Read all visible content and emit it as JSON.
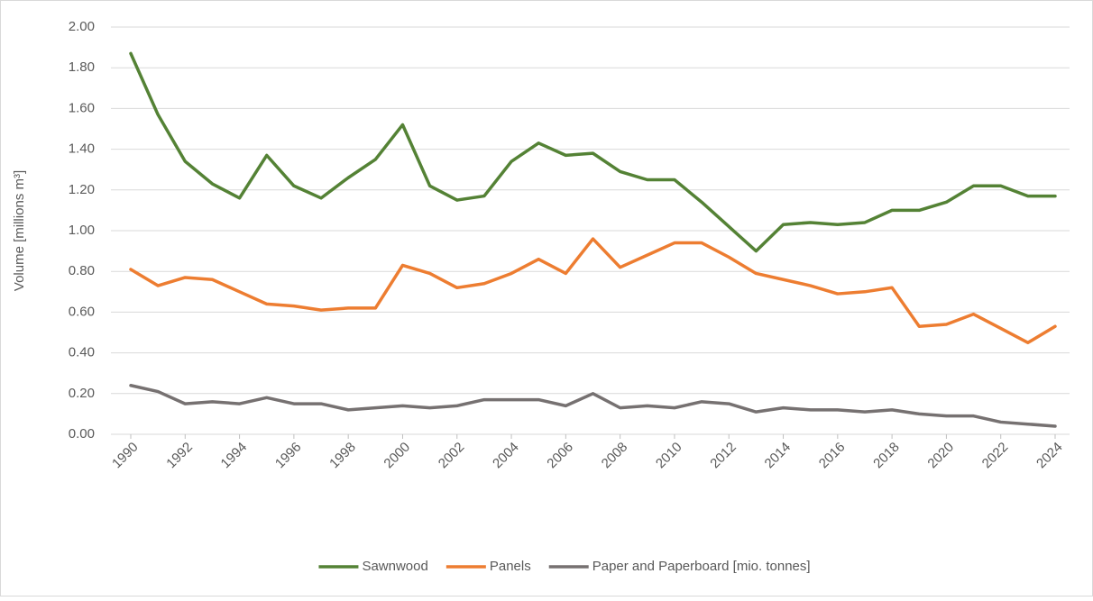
{
  "chart_data": {
    "type": "line",
    "y_label": "Volume [millions m³]",
    "x": [
      1990,
      1991,
      1992,
      1993,
      1994,
      1995,
      1996,
      1997,
      1998,
      1999,
      2000,
      2001,
      2002,
      2003,
      2004,
      2005,
      2006,
      2007,
      2008,
      2009,
      2010,
      2011,
      2012,
      2013,
      2014,
      2015,
      2016,
      2017,
      2018,
      2019,
      2020,
      2021,
      2022,
      2023,
      2024
    ],
    "xlim": [
      1990,
      2024
    ],
    "xticks": [
      1990,
      1992,
      1994,
      1996,
      1998,
      2000,
      2002,
      2004,
      2006,
      2008,
      2010,
      2012,
      2014,
      2016,
      2018,
      2020,
      2022,
      2024
    ],
    "ylim": [
      0,
      2
    ],
    "yticks": [
      {
        "value": 0,
        "label": "0.00"
      },
      {
        "value": 0.2,
        "label": "0.20"
      },
      {
        "value": 0.4,
        "label": "0.40"
      },
      {
        "value": 0.6,
        "label": "0.60"
      },
      {
        "value": 0.8,
        "label": "0.80"
      },
      {
        "value": 1,
        "label": "1.00"
      },
      {
        "value": 1.2,
        "label": "1.20"
      },
      {
        "value": 1.4,
        "label": "1.40"
      },
      {
        "value": 1.6,
        "label": "1.60"
      },
      {
        "value": 1.8,
        "label": "1.80"
      },
      {
        "value": 2,
        "label": "2.00"
      }
    ],
    "grid": true,
    "legend": "bottom",
    "series": [
      {
        "name": "Sawnwood",
        "color": "#548235",
        "values": [
          1.87,
          1.57,
          1.34,
          1.23,
          1.16,
          1.37,
          1.22,
          1.16,
          1.26,
          1.35,
          1.52,
          1.22,
          1.15,
          1.17,
          1.34,
          1.43,
          1.37,
          1.38,
          1.29,
          1.25,
          1.25,
          1.14,
          1.02,
          0.9,
          1.03,
          1.04,
          1.03,
          1.04,
          1.1,
          1.1,
          1.14,
          1.22,
          1.22,
          1.17,
          1.17
        ]
      },
      {
        "name": "Panels",
        "color": "#ed7d31",
        "values": [
          0.81,
          0.73,
          0.77,
          0.76,
          0.7,
          0.64,
          0.63,
          0.61,
          0.62,
          0.62,
          0.83,
          0.79,
          0.72,
          0.74,
          0.79,
          0.86,
          0.79,
          0.96,
          0.82,
          0.88,
          0.94,
          0.94,
          0.87,
          0.79,
          0.76,
          0.73,
          0.69,
          0.7,
          0.72,
          0.53,
          0.54,
          0.59,
          0.52,
          0.45,
          0.53
        ]
      },
      {
        "name": "Paper and Paperboard [mio. tonnes]",
        "color": "#767171",
        "values": [
          0.24,
          0.21,
          0.15,
          0.16,
          0.15,
          0.18,
          0.15,
          0.15,
          0.12,
          0.13,
          0.14,
          0.13,
          0.14,
          0.17,
          0.17,
          0.17,
          0.14,
          0.2,
          0.13,
          0.14,
          0.13,
          0.16,
          0.15,
          0.11,
          0.13,
          0.12,
          0.12,
          0.11,
          0.12,
          0.1,
          0.09,
          0.09,
          0.06,
          0.05,
          0.04
        ]
      }
    ]
  }
}
